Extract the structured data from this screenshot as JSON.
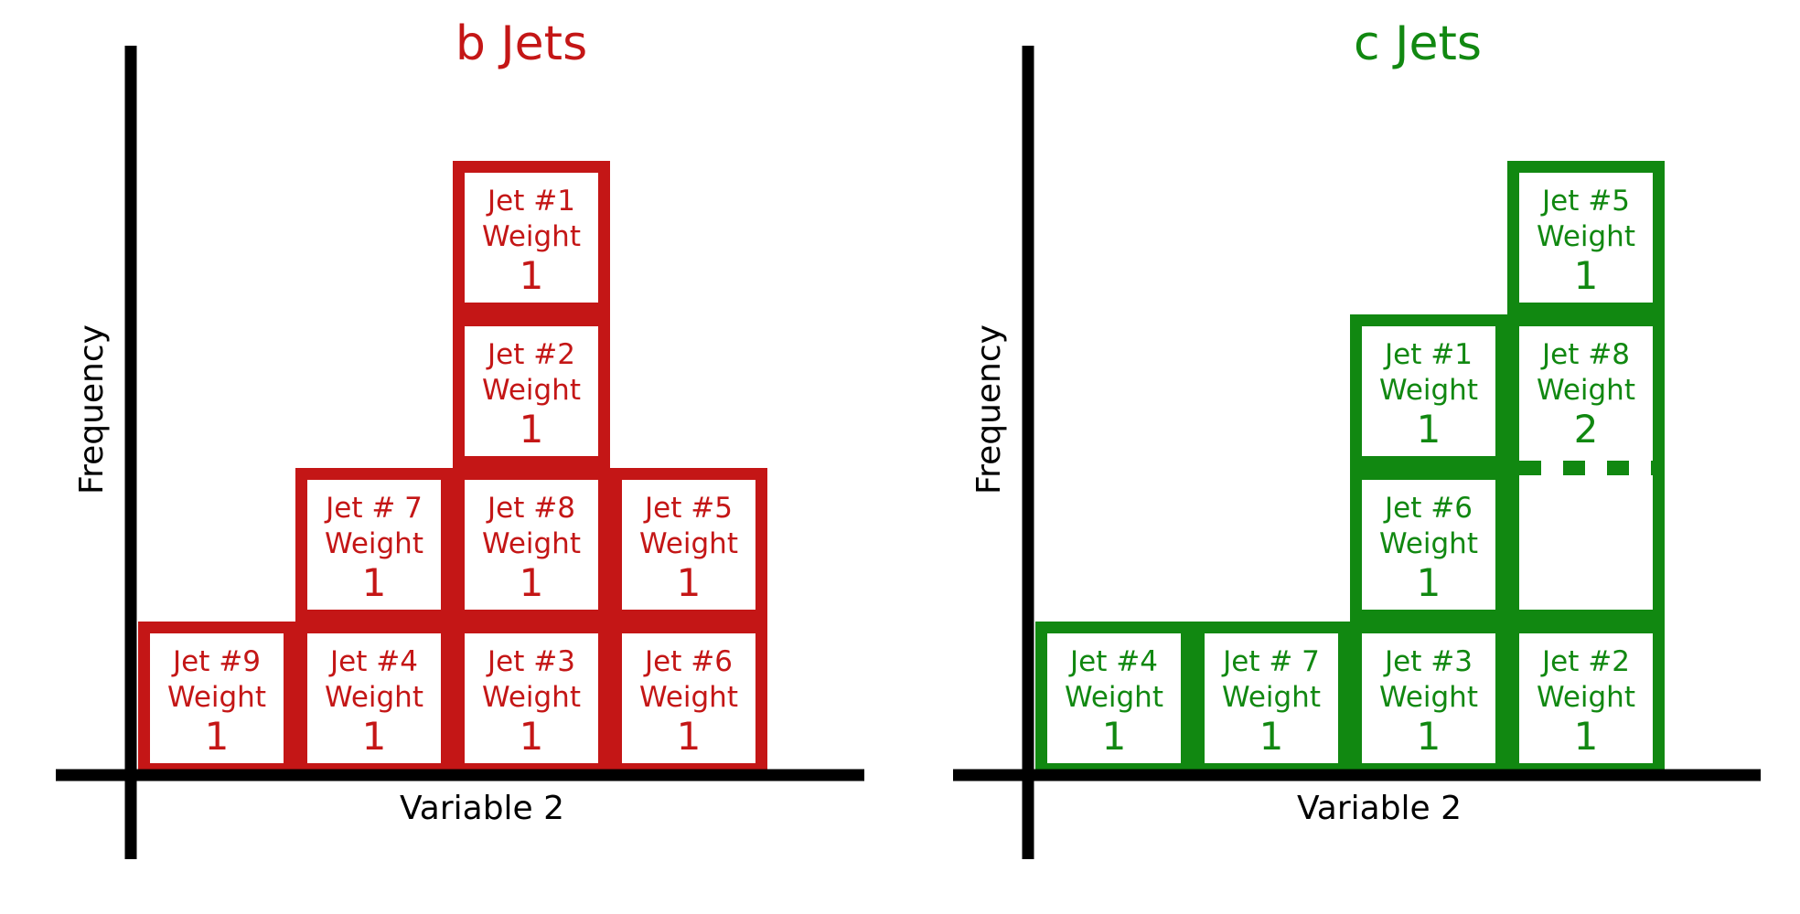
{
  "panels": [
    {
      "id": "b-jets",
      "title": "b Jets",
      "color": "#c41616",
      "xlabel": "Variable 2",
      "ylabel": "Frequency",
      "boxes": [
        {
          "jet": "Jet #9",
          "weight_label": "Weight",
          "weight": "1",
          "col": 0,
          "row": 0
        },
        {
          "jet": "Jet #4",
          "weight_label": "Weight",
          "weight": "1",
          "col": 1,
          "row": 0
        },
        {
          "jet": "Jet #3",
          "weight_label": "Weight",
          "weight": "1",
          "col": 2,
          "row": 0
        },
        {
          "jet": "Jet #6",
          "weight_label": "Weight",
          "weight": "1",
          "col": 3,
          "row": 0
        },
        {
          "jet": "Jet # 7",
          "weight_label": "Weight",
          "weight": "1",
          "col": 1,
          "row": 1
        },
        {
          "jet": "Jet #8",
          "weight_label": "Weight",
          "weight": "1",
          "col": 2,
          "row": 1
        },
        {
          "jet": "Jet #5",
          "weight_label": "Weight",
          "weight": "1",
          "col": 3,
          "row": 1
        },
        {
          "jet": "Jet #2",
          "weight_label": "Weight",
          "weight": "1",
          "col": 2,
          "row": 2
        },
        {
          "jet": "Jet #1",
          "weight_label": "Weight",
          "weight": "1",
          "col": 2,
          "row": 3
        }
      ]
    },
    {
      "id": "c-jets",
      "title": "c Jets",
      "color": "#118811",
      "xlabel": "Variable 2",
      "ylabel": "Frequency",
      "boxes": [
        {
          "jet": "Jet #4",
          "weight_label": "Weight",
          "weight": "1",
          "col": 0,
          "row": 0
        },
        {
          "jet": "Jet # 7",
          "weight_label": "Weight",
          "weight": "1",
          "col": 1,
          "row": 0
        },
        {
          "jet": "Jet #3",
          "weight_label": "Weight",
          "weight": "1",
          "col": 2,
          "row": 0
        },
        {
          "jet": "Jet #2",
          "weight_label": "Weight",
          "weight": "1",
          "col": 3,
          "row": 0
        },
        {
          "jet": "Jet #6",
          "weight_label": "Weight",
          "weight": "1",
          "col": 2,
          "row": 1
        },
        {
          "jet": "Jet #1",
          "weight_label": "Weight",
          "weight": "1",
          "col": 2,
          "row": 2
        },
        {
          "jet": "Jet #8",
          "weight_label": "Weight",
          "weight": "2",
          "col": 3,
          "row": 1,
          "span": 2
        },
        {
          "jet": "Jet #5",
          "weight_label": "Weight",
          "weight": "1",
          "col": 3,
          "row": 3
        }
      ]
    }
  ]
}
